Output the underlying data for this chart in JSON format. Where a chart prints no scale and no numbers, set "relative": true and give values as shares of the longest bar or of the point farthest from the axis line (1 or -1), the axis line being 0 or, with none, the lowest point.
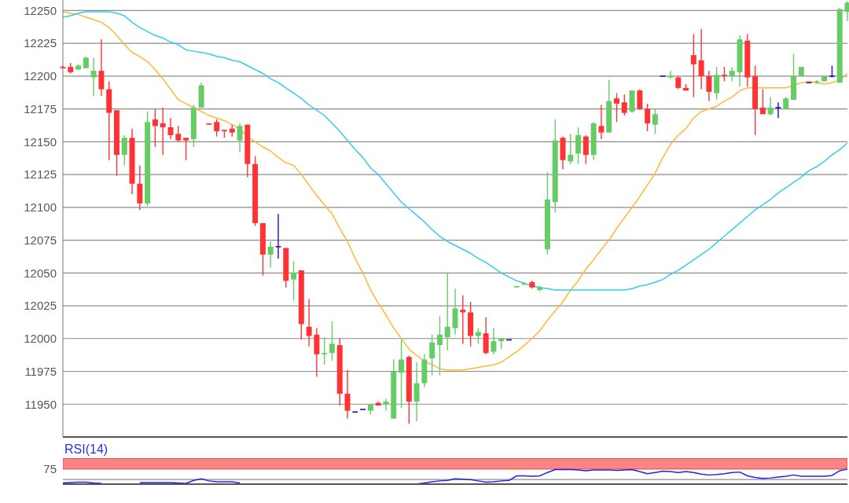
{
  "chart_data": [
    {
      "type": "candlestick",
      "categories": [
        null,
        null,
        null,
        null,
        null,
        null,
        null,
        null,
        null,
        null,
        null,
        null,
        null,
        null,
        null,
        null,
        null,
        null,
        null,
        null,
        null,
        null,
        null,
        null,
        null,
        null,
        null,
        null,
        null,
        null,
        null,
        null,
        null,
        null,
        null,
        null,
        null,
        null,
        null,
        null,
        null,
        null,
        null,
        null,
        null,
        null,
        null,
        null,
        null,
        null,
        null,
        null,
        null,
        null,
        null,
        null,
        null,
        null,
        null,
        null,
        null,
        null,
        null,
        null,
        null,
        null,
        null,
        null,
        null,
        null,
        null,
        null,
        null,
        null,
        null,
        null,
        null,
        null,
        null,
        null,
        null,
        null,
        null,
        null,
        null,
        null,
        null,
        null,
        null,
        null,
        null,
        null,
        null,
        null,
        null,
        null,
        null,
        null,
        null,
        null,
        null,
        null,
        null
      ],
      "ohlc": [
        [
          12207,
          12208,
          12206,
          12206
        ],
        [
          12207,
          12210,
          12202,
          12203
        ],
        [
          12205,
          12209,
          12205,
          12208
        ],
        [
          12206,
          12215,
          12206,
          12214
        ],
        [
          12199,
          12214,
          12185,
          12204
        ],
        [
          12204,
          12228,
          12185,
          12190
        ],
        [
          12190,
          12196,
          12136,
          12172
        ],
        [
          12174,
          12174,
          12124,
          12140
        ],
        [
          12140,
          12155,
          12132,
          12153
        ],
        [
          12153,
          12160,
          12110,
          12118
        ],
        [
          12118,
          12132,
          12098,
          12103
        ],
        [
          12103,
          12173,
          12101,
          12165
        ],
        [
          12167,
          12175,
          12146,
          12162
        ],
        [
          12164,
          12176,
          12140,
          12161
        ],
        [
          12161,
          12168,
          12152,
          12155
        ],
        [
          12156,
          12162,
          12150,
          12151
        ],
        [
          12153,
          12153,
          12136,
          12151
        ],
        [
          12152,
          12178,
          12146,
          12176
        ],
        [
          12176,
          12195,
          12176,
          12193
        ],
        [
          12164,
          12164,
          12163,
          12163
        ],
        [
          12165,
          12167,
          12154,
          12158
        ],
        [
          12159,
          12159,
          12153,
          12158
        ],
        [
          12160,
          12163,
          12154,
          12157
        ],
        [
          12151,
          12164,
          12142,
          12162
        ],
        [
          12163,
          12163,
          12123,
          12133
        ],
        [
          12133,
          12139,
          12086,
          12088
        ],
        [
          12088,
          12088,
          12048,
          12064
        ],
        [
          12064,
          12074,
          12054,
          12070
        ],
        [
          12070,
          12095,
          12061,
          12070
        ],
        [
          12069,
          12069,
          12039,
          12044
        ],
        [
          12045,
          12059,
          12029,
          12050
        ],
        [
          12052,
          12052,
          11999,
          12011
        ],
        [
          12009,
          12030,
          11994,
          12002
        ],
        [
          12003,
          12008,
          11971,
          11988
        ],
        [
          11988,
          12001,
          11980,
          11989
        ],
        [
          11989,
          12013,
          11983,
          11996
        ],
        [
          11995,
          12000,
          11949,
          11958
        ],
        [
          11958,
          11976,
          11939,
          11945
        ],
        [
          11944,
          11944,
          11944,
          11944
        ],
        [
          11946,
          11946,
          11946,
          11946
        ],
        [
          11945,
          11950,
          11942,
          11950
        ],
        [
          11951,
          11952,
          11949,
          11949
        ],
        [
          11950,
          11954,
          11945,
          11952
        ],
        [
          11939,
          11984,
          11939,
          11975
        ],
        [
          11974,
          11999,
          11947,
          11984
        ],
        [
          11986,
          11987,
          11935,
          11952
        ],
        [
          11952,
          11982,
          11937,
          11966
        ],
        [
          11966,
          11988,
          11963,
          11984
        ],
        [
          11985,
          12003,
          11972,
          11997
        ],
        [
          11995,
          12017,
          11972,
          12003
        ],
        [
          12001,
          12050,
          11991,
          12009
        ],
        [
          12008,
          12038,
          12003,
          12023
        ],
        [
          12022,
          12033,
          11996,
          12020
        ],
        [
          12020,
          12028,
          11994,
          12002
        ],
        [
          12002,
          12008,
          11996,
          12005
        ],
        [
          12004,
          12016,
          11988,
          11989
        ],
        [
          11990,
          12008,
          11988,
          11998
        ],
        [
          11998,
          12000,
          11992,
          12000
        ],
        [
          11999,
          11999,
          11999,
          11999
        ],
        [
          12039,
          12040,
          12039,
          12040
        ],
        [
          12041,
          12043,
          12041,
          12042
        ],
        [
          12043,
          12044,
          12038,
          12039
        ],
        [
          12037,
          12040,
          12036,
          12039
        ],
        [
          12068,
          12127,
          12064,
          12106
        ],
        [
          12104,
          12167,
          12096,
          12151
        ],
        [
          12153,
          12154,
          12129,
          12136
        ],
        [
          12135,
          12156,
          12133,
          12140
        ],
        [
          12141,
          12161,
          12133,
          12155
        ],
        [
          12154,
          12155,
          12133,
          12140
        ],
        [
          12140,
          12165,
          12136,
          12164
        ],
        [
          12162,
          12178,
          12152,
          12157
        ],
        [
          12157,
          12197,
          12157,
          12181
        ],
        [
          12183,
          12187,
          12165,
          12179
        ],
        [
          12180,
          12186,
          12170,
          12172
        ],
        [
          12173,
          12189,
          12172,
          12189
        ],
        [
          12189,
          12190,
          12174,
          12175
        ],
        [
          12175,
          12179,
          12158,
          12164
        ],
        [
          12163,
          12175,
          12156,
          12171
        ],
        [
          12200,
          12200,
          12200,
          12200
        ],
        [
          12199,
          12204,
          12198,
          12200
        ],
        [
          12199,
          12200,
          12190,
          12191
        ],
        [
          12191,
          12194,
          12189,
          12189
        ],
        [
          12216,
          12232,
          12184,
          12209
        ],
        [
          12212,
          12236,
          12190,
          12200
        ],
        [
          12200,
          12204,
          12181,
          12188
        ],
        [
          12187,
          12207,
          12182,
          12201
        ],
        [
          12201,
          12207,
          12196,
          12200
        ],
        [
          12200,
          12207,
          12196,
          12204
        ],
        [
          12203,
          12231,
          12192,
          12228
        ],
        [
          12227,
          12232,
          12192,
          12199
        ],
        [
          12200,
          12208,
          12155,
          12175
        ],
        [
          12176,
          12190,
          12171,
          12171
        ],
        [
          12171,
          12184,
          12170,
          12176
        ],
        [
          12176,
          12180,
          12168,
          12176
        ],
        [
          12175,
          12184,
          12175,
          12183
        ],
        [
          12182,
          12217,
          12182,
          12200
        ],
        [
          12200,
          12207,
          12200,
          12207
        ],
        [
          12195,
          12195,
          12195,
          12195
        ],
        [
          12195,
          12197,
          12194,
          12196
        ],
        [
          12196,
          12200,
          12196,
          12200
        ],
        [
          12200,
          12208,
          12199,
          12200
        ],
        [
          12195,
          12252,
          12195,
          12251
        ],
        [
          12249,
          12257,
          12242,
          12256
        ]
      ],
      "colors": [
        "#ff3333",
        "#ff3333",
        "#66cc66",
        "#66cc66",
        "#66cc66",
        "#ff3333",
        "#ff3333",
        "#ff3333",
        "#66cc66",
        "#ff3333",
        "#ff3333",
        "#66cc66",
        "#ff3333",
        "#ff3333",
        "#ff3333",
        "#ff3333",
        "#ff3333",
        "#66cc66",
        "#66cc66",
        "#ff3333",
        "#ff3333",
        "#ff3333",
        "#ff3333",
        "#66cc66",
        "#ff3333",
        "#ff3333",
        "#ff3333",
        "#66cc66",
        "#3300cc",
        "#ff3333",
        "#66cc66",
        "#ff3333",
        "#ff3333",
        "#ff3333",
        "#66cc66",
        "#66cc66",
        "#ff3333",
        "#ff3333",
        "#3300cc",
        "#3300cc",
        "#66cc66",
        "#ff3333",
        "#66cc66",
        "#66cc66",
        "#66cc66",
        "#ff3333",
        "#66cc66",
        "#66cc66",
        "#66cc66",
        "#66cc66",
        "#66cc66",
        "#66cc66",
        "#ff3333",
        "#ff3333",
        "#66cc66",
        "#ff3333",
        "#66cc66",
        "#66cc66",
        "#3300cc",
        "#66cc66",
        "#66cc66",
        "#ff3333",
        "#66cc66",
        "#66cc66",
        "#66cc66",
        "#ff3333",
        "#66cc66",
        "#66cc66",
        "#ff3333",
        "#66cc66",
        "#ff3333",
        "#66cc66",
        "#ff3333",
        "#ff3333",
        "#66cc66",
        "#ff3333",
        "#ff3333",
        "#66cc66",
        "#3300cc",
        "#66cc66",
        "#ff3333",
        "#ff3333",
        "#ff3333",
        "#ff3333",
        "#ff3333",
        "#66cc66",
        "#ff3333",
        "#66cc66",
        "#66cc66",
        "#ff3333",
        "#ff3333",
        "#ff3333",
        "#66cc66",
        "#3300cc",
        "#66cc66",
        "#66cc66",
        "#66cc66",
        "#3300cc",
        "#66cc66",
        "#66cc66",
        "#3300cc",
        "#66cc66",
        "#66cc66"
      ],
      "series": [
        {
          "type": "line",
          "color": "#ffb833",
          "values": [
            12249,
            12248,
            12247,
            12245,
            12243,
            12241,
            12237,
            12231,
            12224,
            12218,
            12215,
            12211,
            12205,
            12198,
            12190,
            12182,
            12179,
            12176,
            12173,
            12170,
            12168,
            12166,
            12163,
            12160,
            12154,
            12150,
            12146,
            12143,
            12138,
            12134,
            12132,
            12125,
            12117,
            12109,
            12102,
            12095,
            12084,
            12074,
            12061,
            12050,
            12037,
            12027,
            12018,
            12008,
            12000,
            11992,
            11987,
            11983,
            11980,
            11977,
            11976,
            11976,
            11976,
            11977,
            11978,
            11979,
            11980,
            11982,
            11986,
            11990,
            11995,
            12000,
            12006,
            12014,
            12021,
            12028,
            12037,
            12044,
            12053,
            12060,
            12068,
            12075,
            12084,
            12092,
            12100,
            12108,
            12117,
            12126,
            12138,
            12148,
            12155,
            12160,
            12168,
            12173,
            12175,
            12177,
            12181,
            12184,
            12189,
            12191,
            12191,
            12191,
            12191,
            12191,
            12191,
            12193,
            12195,
            12196,
            12195,
            12194,
            12195,
            12197,
            12202
          ]
        },
        {
          "type": "line",
          "color": "#33ccee",
          "values": [
            12245,
            12246,
            12248,
            12249,
            12249,
            12249,
            12249,
            12248,
            12246,
            12241,
            12237,
            12234,
            12231,
            12229,
            12226,
            12224,
            12220,
            12219,
            12218,
            12217,
            12215,
            12214,
            12212,
            12211,
            12208,
            12205,
            12202,
            12198,
            12195,
            12191,
            12187,
            12183,
            12178,
            12174,
            12170,
            12164,
            12158,
            12151,
            12144,
            12138,
            12130,
            12125,
            12118,
            12111,
            12104,
            12099,
            12094,
            12089,
            12083,
            12078,
            12074,
            12071,
            12068,
            12065,
            12061,
            12058,
            12054,
            12050,
            12047,
            12044,
            12042,
            12040,
            12039,
            12038,
            12037,
            12037,
            12037,
            12037,
            12037,
            12037,
            12037,
            12037,
            12037,
            12037,
            12038,
            12040,
            12041,
            12043,
            12045,
            12049,
            12052,
            12056,
            12060,
            12064,
            12068,
            12073,
            12078,
            12083,
            12088,
            12093,
            12098,
            12102,
            12106,
            12111,
            12115,
            12119,
            12123,
            12128,
            12131,
            12135,
            12140,
            12144,
            12149
          ]
        }
      ],
      "ylim": [
        11925,
        12258
      ],
      "yticks": [
        11950,
        11975,
        12000,
        12025,
        12050,
        12075,
        12100,
        12125,
        12150,
        12175,
        12200,
        12225,
        12250
      ],
      "grid": "y",
      "tick_labels": "y"
    },
    {
      "type": "line",
      "title": "RSI(14)",
      "categories": [
        null,
        null,
        null,
        null,
        null,
        null,
        null,
        null,
        null,
        null,
        null,
        null,
        null,
        null,
        null,
        null,
        null,
        null,
        null,
        null,
        null,
        null,
        null,
        null,
        null,
        null,
        null,
        null,
        null,
        null,
        null,
        null,
        null,
        null,
        null,
        null,
        null,
        null,
        null,
        null,
        null,
        null,
        null,
        null,
        null,
        null,
        null,
        null,
        null,
        null,
        null,
        null,
        null,
        null,
        null,
        null,
        null,
        null,
        null,
        null,
        null,
        null,
        null,
        null,
        null,
        null,
        null,
        null,
        null,
        null,
        null,
        null,
        null,
        null,
        null,
        null,
        null,
        null,
        null,
        null,
        null,
        null,
        null,
        null,
        null,
        null,
        null,
        null,
        null,
        null,
        null,
        null,
        null,
        null,
        null,
        null,
        null,
        null,
        null,
        null,
        null,
        null,
        null
      ],
      "series": [
        {
          "color": "#2222ee",
          "values": [
            0.06,
            0.09,
            0.11,
            0.11,
            0.06,
            0.03,
            null,
            null,
            null,
            null,
            0.09,
            0.09,
            0.09,
            0.09,
            0.09,
            0.06,
            0.03,
            0.23,
            0.34,
            0.2,
            0.14,
            0.14,
            0.14,
            0.06,
            null,
            null,
            null,
            null,
            null,
            null,
            null,
            null,
            null,
            null,
            null,
            null,
            null,
            null,
            null,
            null,
            null,
            null,
            null,
            null,
            null,
            null,
            0,
            0.06,
            0.14,
            0.2,
            0.23,
            0.34,
            0.31,
            0.29,
            0.2,
            0.11,
            0.14,
            0.2,
            0.23,
            0.54,
            0.54,
            0.51,
            0.54,
            0.77,
            0.97,
            0.97,
            0.97,
            0.94,
            0.89,
            0.94,
            0.94,
            0.94,
            0.91,
            0.94,
            0.97,
            0.83,
            0.69,
            0.77,
            0.86,
            0.83,
            0.77,
            0.83,
            0.77,
            0.66,
            0.6,
            0.63,
            0.69,
            0.77,
            0.8,
            0.54,
            0.43,
            0.37,
            0.4,
            0.46,
            0.51,
            0.6,
            0.51,
            0.51,
            0.51,
            0.51,
            0.57,
            0.89,
            1
          ]
        }
      ],
      "relative": true,
      "annotations": [
        "75"
      ],
      "ref_lines": [
        {
          "axis": "y",
          "value": 0.29,
          "color": "#8c8c8c"
        }
      ],
      "bands": [
        {
          "axis": "y",
          "from": 1,
          "to": 1.71,
          "color": "#ff8585"
        }
      ]
    }
  ]
}
